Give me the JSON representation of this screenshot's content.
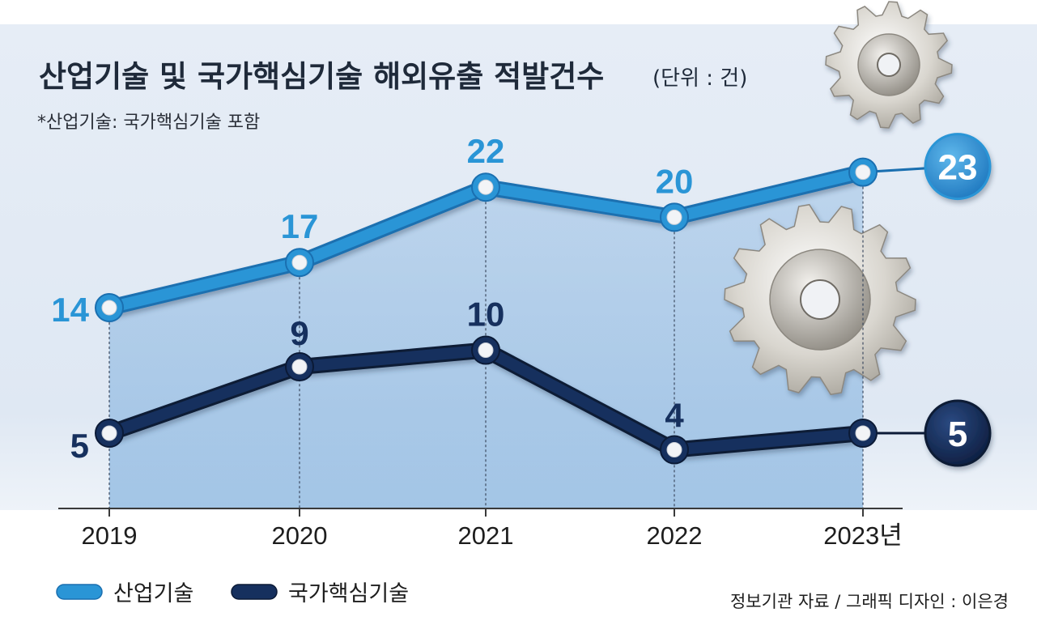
{
  "header": {
    "title": "산업기술 및 국가핵심기술 해외유출 적발건수",
    "unit": "(단위 : 건)",
    "footnote": "*산업기술: 국가핵심기술 포함"
  },
  "chart_data": {
    "type": "line",
    "categories": [
      "2019",
      "2020",
      "2021",
      "2022",
      "2023년"
    ],
    "series": [
      {
        "name": "산업기술",
        "values": [
          14,
          17,
          22,
          20,
          23
        ],
        "color": "#2a95d6"
      },
      {
        "name": "국가핵심기술",
        "values": [
          5,
          9,
          10,
          4,
          5
        ],
        "color": "#16305e"
      }
    ],
    "data_labels": [
      [
        "14",
        "17",
        "22",
        "20",
        "23"
      ],
      [
        "5",
        "9",
        "10",
        "4",
        "5"
      ]
    ],
    "legend_position": "bottom-left",
    "grid": false
  },
  "credit": "정보기관 자료 / 그래픽 디자인 : 이은경",
  "decorations": [
    "gear-icon",
    "gear-icon"
  ]
}
